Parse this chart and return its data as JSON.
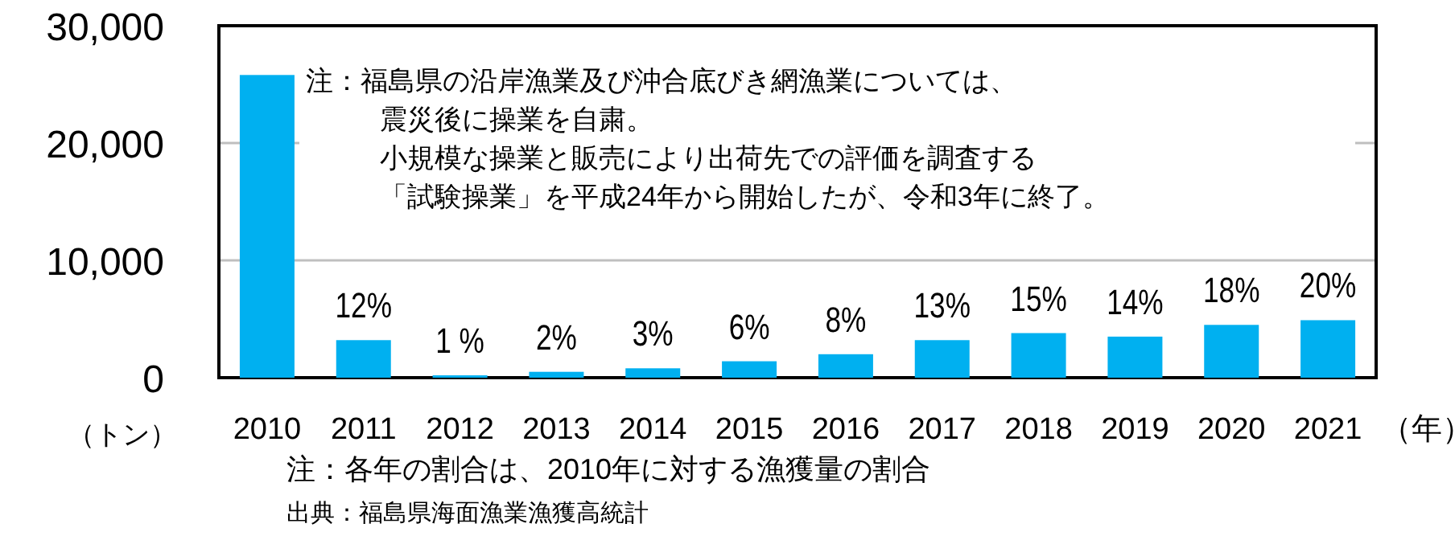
{
  "chart_data": {
    "type": "bar",
    "categories": [
      "2010",
      "2011",
      "2012",
      "2013",
      "2014",
      "2015",
      "2016",
      "2017",
      "2018",
      "2019",
      "2020",
      "2021"
    ],
    "values": [
      25800,
      3200,
      200,
      500,
      800,
      1400,
      2000,
      3200,
      3800,
      3500,
      4500,
      4900
    ],
    "color": "#00b0f0",
    "ylim": [
      0,
      30000
    ],
    "yticks": [
      0,
      {
        "value": 10000,
        "label": "10,000"
      },
      {
        "value": 20000,
        "label": "20,000"
      },
      {
        "value": 30000,
        "label": "30,000"
      }
    ],
    "grid": "y",
    "ylabel": "（トン）",
    "xlabel": "（年）",
    "annotations": [
      "注：福島県の沿岸漁業及び沖合底びき網漁業については、",
      "震災後に操業を自粛。",
      "小規模な操業と販売により出荷先での評価を調査する",
      "「試験操業」を平成24年から開始したが、令和3年に終了。",
      {
        "text": "12%",
        "x": "2011",
        "y": 3200
      },
      {
        "text": "1 %",
        "x": "2012",
        "y": 200
      },
      {
        "text": "2%",
        "x": "2013",
        "y": 500
      },
      {
        "text": "3%",
        "x": "2014",
        "y": 800
      },
      {
        "text": "6%",
        "x": "2015",
        "y": 1400
      },
      {
        "text": "8%",
        "x": "2016",
        "y": 2000
      },
      {
        "text": "13%",
        "x": "2017",
        "y": 3200
      },
      {
        "text": "15%",
        "x": "2018",
        "y": 3800
      },
      {
        "text": "14%",
        "x": "2019",
        "y": 3500
      },
      {
        "text": "18%",
        "x": "2020",
        "y": 4500
      },
      {
        "text": "20%",
        "x": "2021",
        "y": 4900
      },
      "注：各年の割合は、2010年に対する漁獲量の割合",
      "出典：福島県海面漁業漁獲高統計"
    ]
  }
}
